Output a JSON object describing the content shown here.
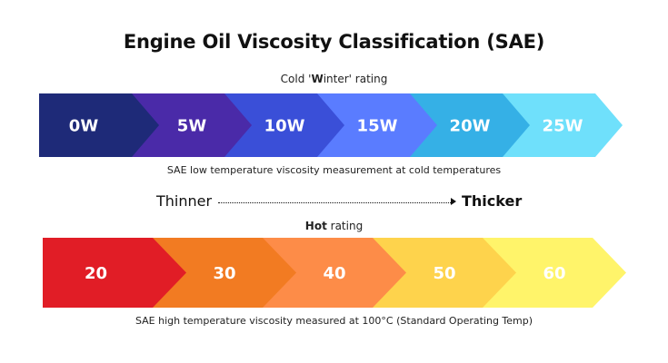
{
  "title": "Engine Oil Viscosity Classification (SAE)",
  "winter": {
    "heading_prefix": "Cold '",
    "heading_bold": "W",
    "heading_suffix": "inter' rating",
    "caption": "SAE low temperature viscosity measurement at cold temperatures",
    "segments": [
      {
        "label": "0W",
        "color": "#1e2a78"
      },
      {
        "label": "5W",
        "color": "#4a2aa8"
      },
      {
        "label": "10W",
        "color": "#3a4fd8"
      },
      {
        "label": "15W",
        "color": "#5a7cff"
      },
      {
        "label": "20W",
        "color": "#35b0e6"
      },
      {
        "label": "25W",
        "color": "#6fe0fb"
      }
    ]
  },
  "scale": {
    "left_label": "Thinner",
    "right_label": "Thicker"
  },
  "hot": {
    "heading_bold": "Hot",
    "heading_suffix": " rating",
    "caption": "SAE high temperature viscosity measured at 100°C (Standard Operating Temp)",
    "segments": [
      {
        "label": "20",
        "color": "#e11d26"
      },
      {
        "label": "30",
        "color": "#f27b22"
      },
      {
        "label": "40",
        "color": "#fd8c48"
      },
      {
        "label": "50",
        "color": "#fed34c"
      },
      {
        "label": "60",
        "color": "#fff46a"
      }
    ]
  }
}
